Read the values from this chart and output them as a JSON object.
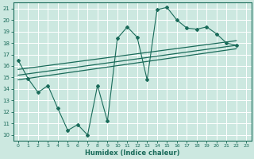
{
  "xlabel": "Humidex (Indice chaleur)",
  "bg_color": "#cce8e0",
  "grid_color": "#ffffff",
  "line_color": "#1a6b5a",
  "xlim": [
    -0.5,
    23.5
  ],
  "ylim": [
    9.5,
    21.5
  ],
  "xticks": [
    0,
    1,
    2,
    3,
    4,
    5,
    6,
    7,
    8,
    9,
    10,
    11,
    12,
    13,
    14,
    15,
    16,
    17,
    18,
    19,
    20,
    21,
    22,
    23
  ],
  "yticks": [
    10,
    11,
    12,
    13,
    14,
    15,
    16,
    17,
    18,
    19,
    20,
    21
  ],
  "zigzag_x": [
    0,
    1,
    2,
    3,
    4,
    5,
    6,
    7,
    8,
    9,
    10,
    11,
    12,
    13,
    14,
    15,
    16,
    17,
    18,
    19,
    20,
    21,
    22
  ],
  "zigzag_y": [
    16.5,
    14.9,
    13.7,
    14.3,
    12.3,
    10.4,
    10.9,
    10.0,
    14.3,
    11.2,
    18.4,
    19.4,
    18.5,
    14.8,
    20.9,
    21.1,
    20.0,
    19.3,
    19.2,
    19.4,
    18.8,
    18.0,
    17.8
  ],
  "line1_x": [
    0,
    22
  ],
  "line1_y": [
    15.2,
    17.8
  ],
  "line2_x": [
    0,
    22
  ],
  "line2_y": [
    15.7,
    18.2
  ],
  "line3_x": [
    0,
    22
  ],
  "line3_y": [
    14.8,
    17.5
  ]
}
